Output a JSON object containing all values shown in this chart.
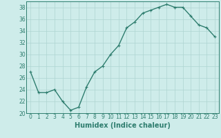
{
  "x": [
    0,
    1,
    2,
    3,
    4,
    5,
    6,
    7,
    8,
    9,
    10,
    11,
    12,
    13,
    14,
    15,
    16,
    17,
    18,
    19,
    20,
    21,
    22,
    23
  ],
  "y": [
    27,
    23.5,
    23.5,
    24,
    22,
    20.5,
    21,
    24.5,
    27,
    28,
    30,
    31.5,
    34.5,
    35.5,
    37,
    37.5,
    38,
    38.5,
    38,
    38,
    36.5,
    35,
    34.5,
    33
  ],
  "line_color": "#2e7d6e",
  "marker": "+",
  "marker_size": 3,
  "bg_color": "#ceecea",
  "grid_color": "#aed4d1",
  "xlabel": "Humidex (Indice chaleur)",
  "ylabel": "",
  "title": "",
  "ylim": [
    20,
    39
  ],
  "xlim": [
    -0.5,
    23.5
  ],
  "yticks": [
    20,
    22,
    24,
    26,
    28,
    30,
    32,
    34,
    36,
    38
  ],
  "xticks": [
    0,
    1,
    2,
    3,
    4,
    5,
    6,
    7,
    8,
    9,
    10,
    11,
    12,
    13,
    14,
    15,
    16,
    17,
    18,
    19,
    20,
    21,
    22,
    23
  ],
  "tick_label_fontsize": 5.5,
  "xlabel_fontsize": 7,
  "line_width": 1.0
}
